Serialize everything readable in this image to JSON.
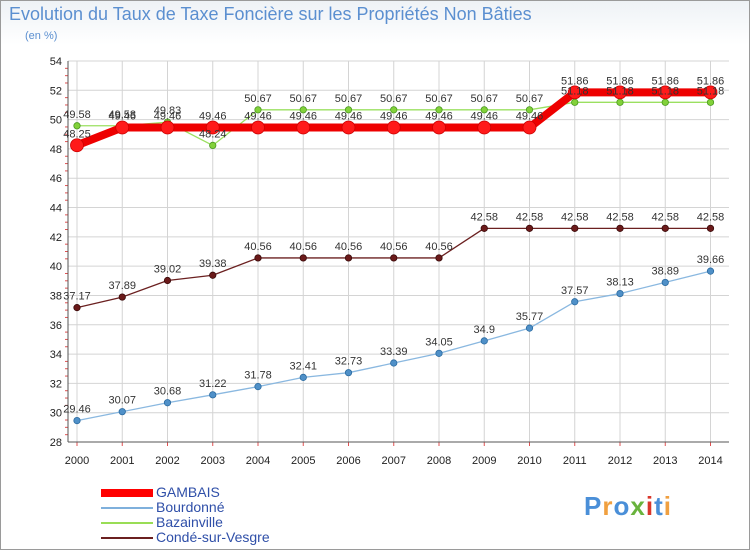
{
  "header": {
    "title": "Evolution du Taux de Taxe Foncière sur les Propriétés Non Bâties",
    "unit": "(en %)"
  },
  "logo": {
    "text": "Proxiti",
    "colors": [
      "#4a8fd8",
      "#f08a2a",
      "#69b33d",
      "#d9362b"
    ]
  },
  "chart_data": {
    "type": "line",
    "x": [
      2000,
      2001,
      2002,
      2003,
      2004,
      2005,
      2006,
      2007,
      2008,
      2009,
      2010,
      2011,
      2012,
      2013,
      2014
    ],
    "ylim": [
      28,
      54
    ],
    "yticks": [
      28,
      30,
      32,
      34,
      36,
      38,
      40,
      42,
      44,
      46,
      48,
      50,
      52,
      54
    ],
    "grid": true,
    "legend_position": "bottom-left",
    "series": [
      {
        "name": "Condé-sur-Vesgre",
        "color": "#6b2020",
        "values": [
          37.17,
          37.89,
          39.02,
          39.38,
          40.56,
          40.56,
          40.56,
          40.56,
          40.56,
          42.58,
          42.58,
          42.58,
          42.58,
          42.58,
          42.58
        ]
      },
      {
        "name": "Bourdonné",
        "color": "#7fb0dc",
        "values": [
          29.46,
          30.07,
          30.68,
          31.22,
          31.78,
          32.41,
          32.73,
          33.39,
          34.05,
          34.9,
          35.77,
          37.57,
          38.13,
          38.89,
          39.66
        ]
      },
      {
        "name": "Bazainville",
        "color": "#99dd55",
        "values": [
          49.58,
          49.58,
          49.83,
          48.24,
          50.67,
          50.67,
          50.67,
          50.67,
          50.67,
          50.67,
          50.67,
          51.18,
          51.18,
          51.18,
          51.18
        ]
      },
      {
        "name": "GAMBAIS",
        "color": "#ff0000",
        "values": [
          48.25,
          49.46,
          49.46,
          49.46,
          49.46,
          49.46,
          49.46,
          49.46,
          49.46,
          49.46,
          49.46,
          51.86,
          51.86,
          51.86,
          51.86
        ]
      }
    ],
    "data_labels": {
      "Condé-sur-Vesgre": [
        "37.17",
        "37.89",
        "39.02",
        "39.38",
        "40.56",
        "40.56",
        "40.56",
        "40.56",
        "40.56",
        "42.58",
        "42.58",
        "42.58",
        "42.58",
        "42.58",
        "42.58"
      ],
      "Bourdonné": [
        "29.46",
        "30.07",
        "30.68",
        "31.22",
        "31.78",
        "32.41",
        "32.73",
        "33.39",
        "34.05",
        "34.9",
        "35.77",
        "37.57",
        "38.13",
        "38.89",
        "39.66"
      ],
      "Bazainville": [
        "49.58",
        "49.58",
        "49.83",
        "48.24",
        "50.67",
        "50.67",
        "50.67",
        "50.67",
        "50.67",
        "50.67",
        "50.67",
        "51.18",
        "51.18",
        "51.18",
        "51.18"
      ],
      "GAMBAIS": [
        "48.25",
        "49.46",
        "49.46",
        "49.46",
        "49.46",
        "49.46",
        "49.46",
        "49.46",
        "49.46",
        "49.46",
        "49.46",
        "51.86",
        "51.86",
        "51.86",
        "51.86"
      ]
    }
  },
  "legend": [
    {
      "label": "GAMBAIS",
      "color": "#ff0000",
      "weight": "thick"
    },
    {
      "label": "Bourdonné",
      "color": "#7fb0dc",
      "weight": "thin"
    },
    {
      "label": "Bazainville",
      "color": "#99dd55",
      "weight": "thin"
    },
    {
      "label": "Condé-sur-Vesgre",
      "color": "#6b2020",
      "weight": "thin"
    }
  ]
}
